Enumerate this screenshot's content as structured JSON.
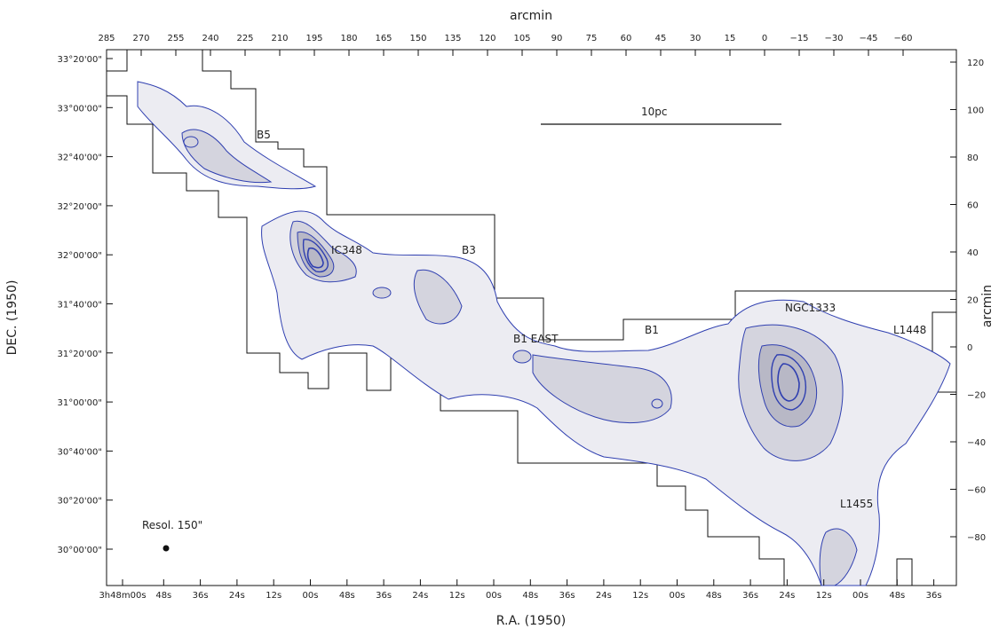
{
  "figure": {
    "top_axis_title": "arcmin",
    "right_axis_title": "arcmin",
    "left_axis_title": "DEC. (1950)",
    "bottom_axis_title": "R.A. (1950)",
    "top_ticks": [
      "285",
      "270",
      "255",
      "240",
      "225",
      "210",
      "195",
      "180",
      "165",
      "150",
      "135",
      "120",
      "105",
      "90",
      "75",
      "60",
      "45",
      "30",
      "15",
      "0",
      "−15",
      "−30",
      "−45",
      "−60"
    ],
    "right_ticks": [
      "120",
      "100",
      "80",
      "60",
      "40",
      "20",
      "0",
      "−20",
      "−40",
      "−60",
      "−80"
    ],
    "left_ticks": [
      "33°20'00\"",
      "33°00'00\"",
      "32°40'00\"",
      "32°20'00\"",
      "32°00'00\"",
      "31°40'00\"",
      "31°20'00\"",
      "31°00'00\"",
      "30°40'00\"",
      "30°20'00\"",
      "30°00'00\""
    ],
    "bottom_ticks": [
      "3h48m00s",
      "48s",
      "36s",
      "24s",
      "12s",
      "00s",
      "48s",
      "36s",
      "24s",
      "12s",
      "00s",
      "48s",
      "36s",
      "24s",
      "12s",
      "00s",
      "48s",
      "36s",
      "24s",
      "12s",
      "00s",
      "48s",
      "36s"
    ],
    "scale_bar_label": "10pc",
    "resolution_label": "Resol. 150\"",
    "region_labels": {
      "b5": "B5",
      "ic348": "IC348",
      "b3": "B3",
      "b1_east": "B1 EAST",
      "b1": "B1",
      "ngc1333": "NGC1333",
      "l1448": "L1448",
      "l1455": "L1455"
    },
    "colors": {
      "contour": "#2f3fb0",
      "fill_light": "#ececf2",
      "fill_mid": "#d4d4de",
      "fill_dark": "#b8b8c6",
      "boundary": "#111111"
    }
  }
}
